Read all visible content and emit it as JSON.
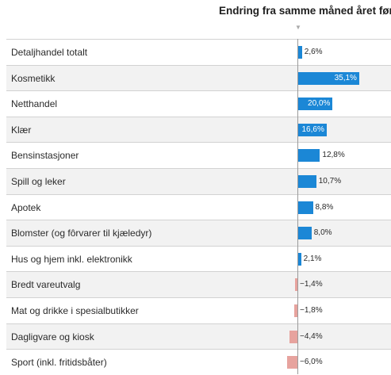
{
  "header": {
    "title": "Endring fra samme måned året før",
    "marker": "▼"
  },
  "chart_data": {
    "type": "bar",
    "orientation": "horizontal",
    "title": "Endring fra samme måned året før",
    "categories": [
      "Detaljhandel totalt",
      "Kosmetikk",
      "Netthandel",
      "Klær",
      "Bensinstasjoner",
      "Spill og leker",
      "Apotek",
      "Blomster (og fôrvarer til kjæledyr)",
      "Hus og hjem inkl. elektronikk",
      "Bredt vareutvalg",
      "Mat og drikke i spesialbutikker",
      "Dagligvare og kiosk",
      "Sport (inkl. fritidsbåter)"
    ],
    "values": [
      2.6,
      35.1,
      20.0,
      16.6,
      12.8,
      10.7,
      8.8,
      8.0,
      2.1,
      -1.4,
      -1.8,
      -4.4,
      -6.0
    ],
    "labels": [
      "2,6%",
      "35,1%",
      "20,0%",
      "16,6%",
      "12,8%",
      "10,7%",
      "8,8%",
      "8,0%",
      "2,1%",
      "−1,4%",
      "−1,8%",
      "−4,4%",
      "−6,0%"
    ],
    "colors": {
      "positive": "#1b87d6",
      "negative": "#e7a39e"
    },
    "grid": false
  }
}
